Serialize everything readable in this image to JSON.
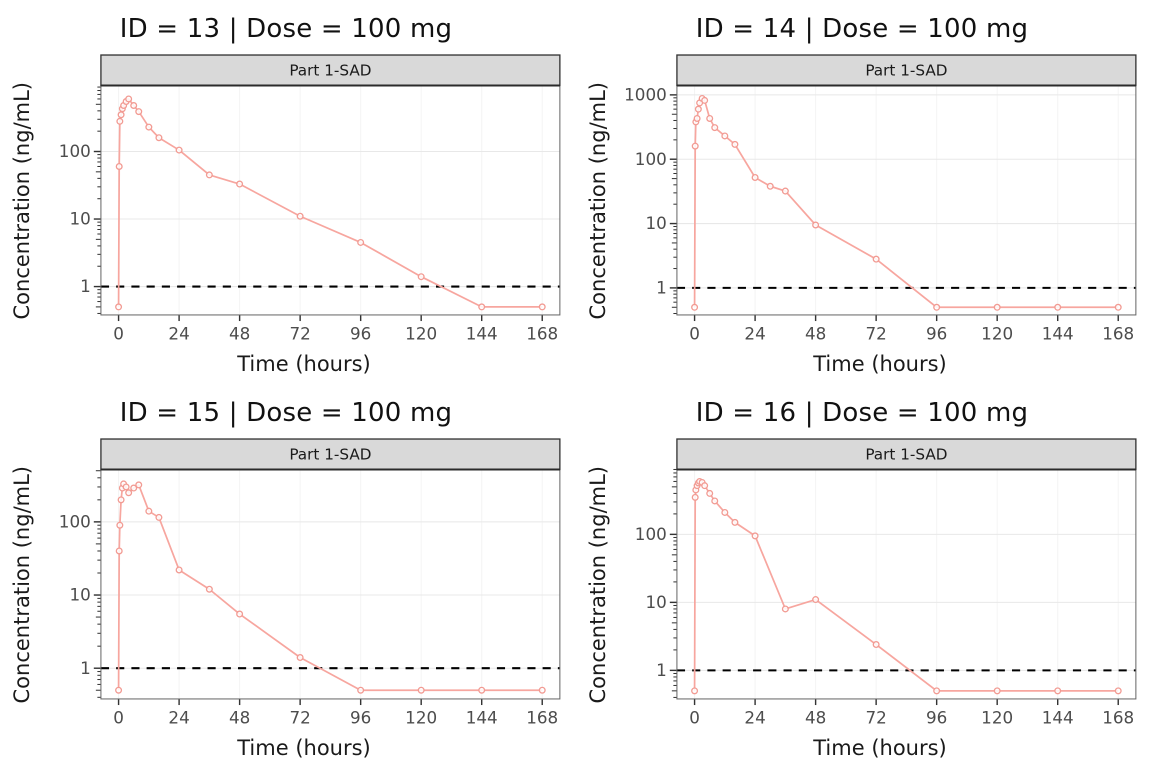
{
  "styles": {
    "background": "#ffffff",
    "accent_line": "#f7a69f",
    "accent_point": "#f29b93",
    "point_fill": "#ffffff",
    "strip_bg": "#d9d9d9",
    "strip_border": "#333333",
    "panel_border": "#666666",
    "grid_major": "#e8e8e8",
    "grid_minor": "#f4f4f4",
    "tick_color": "#333333",
    "label_color": "#4d4d4d",
    "lloq_color": "#000000"
  },
  "chart_data": [
    {
      "type": "line",
      "title": "ID = 13 | Dose = 100 mg",
      "subject_id": 13,
      "dose_label": "100 mg",
      "strip_label": "Part 1-SAD",
      "xlabel": "Time (hours)",
      "ylabel": "Concentration (ng/mL)",
      "y_scale": "log10",
      "x_ticks": [
        0,
        24,
        48,
        72,
        96,
        120,
        144,
        168
      ],
      "y_ticks": [
        1,
        10,
        100
      ],
      "xlim": [
        -7,
        175
      ],
      "ylim": [
        0.38,
        950
      ],
      "lloq_line": 1,
      "x": [
        0,
        0.25,
        0.5,
        1,
        1.5,
        2,
        3,
        4,
        6,
        8,
        12,
        16,
        24,
        36,
        48,
        72,
        96,
        120,
        144,
        168
      ],
      "y": [
        0.5,
        60,
        280,
        350,
        430,
        480,
        550,
        600,
        480,
        390,
        230,
        160,
        105,
        45,
        33,
        11,
        4.5,
        1.4,
        0.5,
        0.5
      ]
    },
    {
      "type": "line",
      "title": "ID = 14 | Dose = 100 mg",
      "subject_id": 14,
      "dose_label": "100 mg",
      "strip_label": "Part 1-SAD",
      "xlabel": "Time (hours)",
      "ylabel": "Concentration (ng/mL)",
      "y_scale": "log10",
      "x_ticks": [
        0,
        24,
        48,
        72,
        96,
        120,
        144,
        168
      ],
      "y_ticks": [
        1,
        10,
        100,
        1000
      ],
      "xlim": [
        -7,
        175
      ],
      "ylim": [
        0.38,
        1400
      ],
      "lloq_line": 1,
      "x": [
        0,
        0.25,
        0.5,
        1,
        1.5,
        2,
        3,
        4,
        6,
        8,
        12,
        16,
        24,
        30,
        36,
        48,
        72,
        96,
        120,
        144,
        168
      ],
      "y": [
        0.5,
        160,
        380,
        430,
        600,
        750,
        880,
        820,
        430,
        310,
        230,
        170,
        52,
        38,
        32,
        9.5,
        2.8,
        0.5,
        0.5,
        0.5,
        0.5
      ]
    },
    {
      "type": "line",
      "title": "ID = 15 | Dose = 100 mg",
      "subject_id": 15,
      "dose_label": "100 mg",
      "strip_label": "Part 1-SAD",
      "xlabel": "Time (hours)",
      "ylabel": "Concentration (ng/mL)",
      "y_scale": "log10",
      "x_ticks": [
        0,
        24,
        48,
        72,
        96,
        120,
        144,
        168
      ],
      "y_ticks": [
        1,
        10,
        100
      ],
      "xlim": [
        -7,
        175
      ],
      "ylim": [
        0.38,
        520
      ],
      "lloq_line": 1,
      "x": [
        0,
        0.25,
        0.5,
        1,
        1.5,
        2,
        3,
        4,
        6,
        8,
        12,
        16,
        24,
        36,
        48,
        72,
        96,
        120,
        144,
        168
      ],
      "y": [
        0.5,
        40,
        90,
        200,
        290,
        330,
        300,
        250,
        290,
        320,
        140,
        115,
        22,
        12,
        5.5,
        1.4,
        0.5,
        0.5,
        0.5,
        0.5
      ]
    },
    {
      "type": "line",
      "title": "ID = 16 | Dose = 100 mg",
      "subject_id": 16,
      "dose_label": "100 mg",
      "strip_label": "Part 1-SAD",
      "xlabel": "Time (hours)",
      "ylabel": "Concentration (ng/mL)",
      "y_scale": "log10",
      "x_ticks": [
        0,
        24,
        48,
        72,
        96,
        120,
        144,
        168
      ],
      "y_ticks": [
        1,
        10,
        100
      ],
      "xlim": [
        -7,
        175
      ],
      "ylim": [
        0.38,
        900
      ],
      "lloq_line": 1,
      "x": [
        0,
        0.25,
        0.5,
        1,
        1.5,
        2,
        3,
        4,
        6,
        8,
        12,
        16,
        24,
        36,
        48,
        72,
        96,
        120,
        144,
        168
      ],
      "y": [
        0.5,
        350,
        450,
        520,
        570,
        600,
        580,
        520,
        400,
        310,
        210,
        150,
        95,
        8,
        11,
        2.4,
        0.5,
        0.5,
        0.5,
        0.5
      ]
    }
  ]
}
